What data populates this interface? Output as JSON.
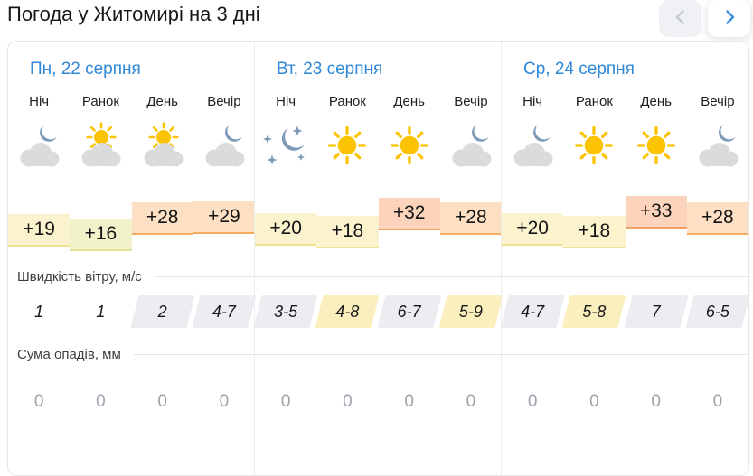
{
  "title": "Погода у Житомирі на 3 дні",
  "nav": {
    "prev_icon": "chevron-left",
    "next_icon": "chevron-right",
    "prev_enabled": false,
    "next_enabled": true
  },
  "time_labels": [
    "Ніч",
    "Ранок",
    "День",
    "Вечір"
  ],
  "sections": {
    "wind": "Швидкість вітру, м/с",
    "precip": "Сума опадів, мм"
  },
  "days": [
    {
      "title": "Пн, 22 серпня",
      "icons": [
        "moon-cloud",
        "sun-cloud",
        "sun-cloud",
        "moon-cloud"
      ],
      "temps": [
        "+19",
        "+16",
        "+28",
        "+29"
      ],
      "wind": [
        {
          "value": "1",
          "bg": "none"
        },
        {
          "value": "1",
          "bg": "none"
        },
        {
          "value": "2",
          "bg": "gray"
        },
        {
          "value": "4-7",
          "bg": "gray"
        }
      ],
      "precip": [
        "0",
        "0",
        "0",
        "0"
      ]
    },
    {
      "title": "Вт, 23 серпня",
      "icons": [
        "moon-stars",
        "sun",
        "sun",
        "moon-cloud"
      ],
      "temps": [
        "+20",
        "+18",
        "+32",
        "+28"
      ],
      "wind": [
        {
          "value": "3-5",
          "bg": "gray"
        },
        {
          "value": "4-8",
          "bg": "yellow"
        },
        {
          "value": "6-7",
          "bg": "gray"
        },
        {
          "value": "5-9",
          "bg": "yellow"
        }
      ],
      "precip": [
        "0",
        "0",
        "0",
        "0"
      ]
    },
    {
      "title": "Ср, 24 серпня",
      "icons": [
        "moon-cloud",
        "sun",
        "sun",
        "moon-cloud"
      ],
      "temps": [
        "+20",
        "+18",
        "+33",
        "+28"
      ],
      "wind": [
        {
          "value": "4-7",
          "bg": "gray"
        },
        {
          "value": "5-8",
          "bg": "yellow"
        },
        {
          "value": "7",
          "bg": "gray"
        },
        {
          "value": "6-5",
          "bg": "gray"
        }
      ],
      "precip": [
        "0",
        "0",
        "0",
        "0"
      ]
    }
  ],
  "colors": {
    "day_title": "#2f87d7",
    "chevron_active": "#3f8ede",
    "chevron_disabled": "#c8cdd4",
    "temp_green_bg": "#f1f1ca",
    "temp_green_border": "#dfe09a",
    "temp_yellow_bg": "#fbf3cd",
    "temp_yellow_border": "#f0e193",
    "temp_warm_bg": "#fde0c4",
    "temp_warm_border": "#f5ad5d",
    "temp_hot_bg": "#fcd3bb",
    "temp_hot_border": "#f0a263",
    "wind_gray": "#ebedf0",
    "wind_yellow": "#fbf0bd",
    "zero_text": "#9da3ab",
    "sun": "#fcc303",
    "moon": "#7e9ab9",
    "cloud": "#d9dbdc"
  }
}
